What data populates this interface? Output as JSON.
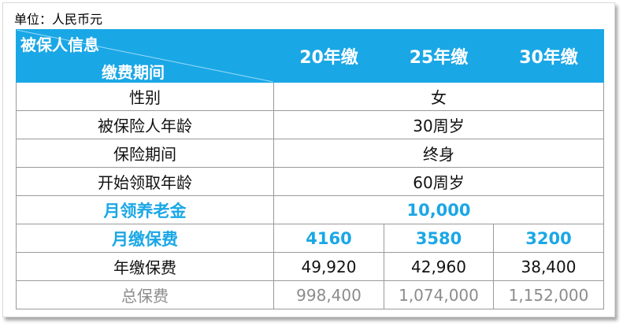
{
  "unit_label": "单位：人民币元",
  "header": {
    "corner_top": "被保人信息",
    "corner_bottom": "缴费期间",
    "columns": [
      "20年缴",
      "25年缴",
      "30年缴"
    ]
  },
  "info_rows": [
    {
      "label": "性别",
      "value": "女"
    },
    {
      "label": "被保险人年龄",
      "value": "30周岁"
    },
    {
      "label": "保险期间",
      "value": "终身"
    },
    {
      "label": "开始领取年龄",
      "value": "60周岁"
    }
  ],
  "monthly_pension": {
    "label": "月领养老金",
    "value": "10,000"
  },
  "monthly_premium": {
    "label": "月缴保费",
    "values": [
      "4160",
      "3580",
      "3200"
    ]
  },
  "annual_premium": {
    "label": "年缴保费",
    "values": [
      "49,920",
      "42,960",
      "38,400"
    ]
  },
  "total_premium": {
    "label": "总保费",
    "values": [
      "998,400",
      "1,074,000",
      "1,152,000"
    ]
  },
  "colors": {
    "accent": "#1aa7e6",
    "muted_text": "#8c8c8c",
    "border": "#9a9a9a"
  }
}
